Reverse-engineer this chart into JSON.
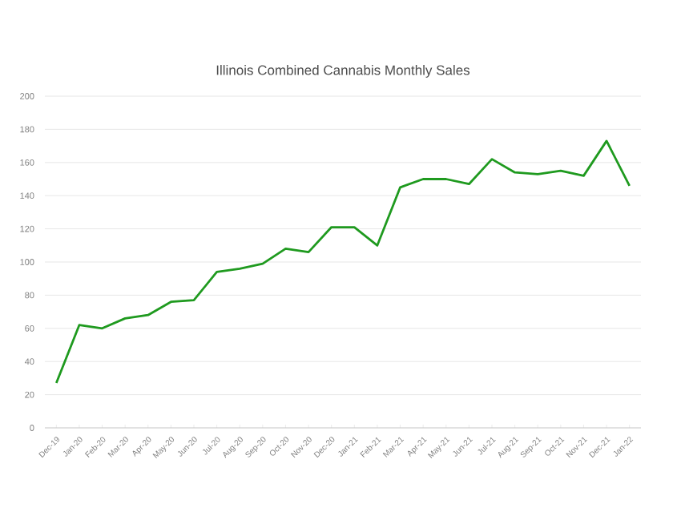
{
  "chart_data": {
    "type": "line",
    "title": "Illinois Combined Cannabis Monthly Sales",
    "categories": [
      "Dec-19",
      "Jan-20",
      "Feb-20",
      "Mar-20",
      "Apr-20",
      "May-20",
      "Jun-20",
      "Jul-20",
      "Aug-20",
      "Sep-20",
      "Oct-20",
      "Nov-20",
      "Dec-20",
      "Jan-21",
      "Feb-21",
      "Mar-21",
      "Apr-21",
      "May-21",
      "Jun-21",
      "Jul-21",
      "Aug-21",
      "Sep-21",
      "Oct-21",
      "Nov-21",
      "Dec-21",
      "Jan-22"
    ],
    "values": [
      27,
      62,
      60,
      66,
      68,
      76,
      77,
      94,
      96,
      99,
      108,
      106,
      121,
      121,
      110,
      145,
      150,
      150,
      147,
      162,
      154,
      153,
      155,
      152,
      173,
      146
    ],
    "color": "#1f9a1f",
    "ylim": [
      0,
      200
    ],
    "yticks": [
      0,
      20,
      40,
      60,
      80,
      100,
      120,
      140,
      160,
      180,
      200
    ],
    "grid": "y",
    "marker": "none",
    "line_style": "solid"
  }
}
